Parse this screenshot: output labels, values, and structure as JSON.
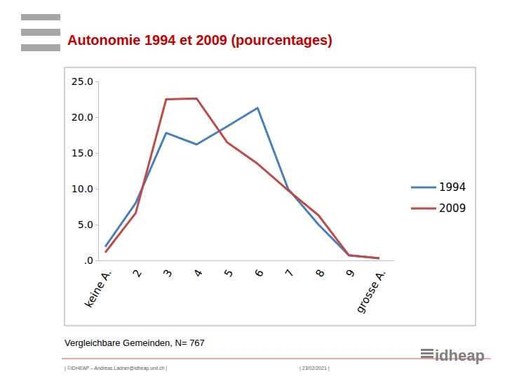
{
  "chart_data": {
    "type": "line",
    "title": "Autonomie 1994 et 2009 (pourcentages)",
    "categories": [
      "keine A.",
      "2",
      "3",
      "4",
      "5",
      "6",
      "7",
      "8",
      "9",
      "grosse A."
    ],
    "series": [
      {
        "name": "1994",
        "color": "#4a7ebb",
        "values": [
          1.9,
          8.0,
          17.8,
          16.2,
          18.7,
          21.3,
          10.0,
          5.0,
          0.7,
          0.3
        ]
      },
      {
        "name": "2009",
        "color": "#be4b48",
        "values": [
          1.1,
          6.6,
          22.5,
          22.6,
          16.5,
          13.5,
          9.8,
          6.3,
          0.7,
          0.3
        ]
      }
    ],
    "ylim": [
      0,
      25
    ],
    "yticks": [
      {
        "value": 0,
        "label": ".0"
      },
      {
        "value": 5,
        "label": "5.0"
      },
      {
        "value": 10,
        "label": "10.0"
      },
      {
        "value": 15,
        "label": "15.0"
      },
      {
        "value": 20,
        "label": "20.0"
      },
      {
        "value": 25,
        "label": "25.0"
      }
    ],
    "grid": false,
    "legend": "right"
  },
  "slide": {
    "note": "Vergleichbare Gemeinden, N= 767",
    "footer_left": "| ©IDHEAP – Andreas.Ladner@idheap.unil.ch |",
    "footer_date": "| 23/02/2021 |",
    "logo": "idheap"
  }
}
